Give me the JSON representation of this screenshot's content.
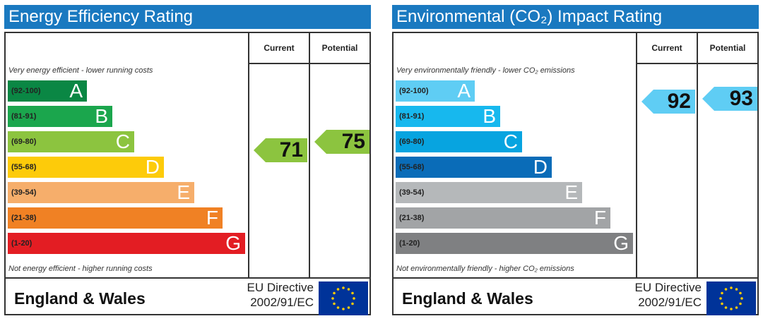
{
  "energy": {
    "title": "Energy Efficiency Rating",
    "col_current": "Current",
    "col_potential": "Potential",
    "top_note": "Very energy efficient - lower running costs",
    "bottom_note": "Not energy efficient - higher running costs",
    "bands": [
      {
        "range": "(92-100)",
        "letter": "A",
        "color": "#0a8744"
      },
      {
        "range": "(81-91)",
        "letter": "B",
        "color": "#1ba64d"
      },
      {
        "range": "(69-80)",
        "letter": "C",
        "color": "#8cc43f"
      },
      {
        "range": "(55-68)",
        "letter": "D",
        "color": "#fdcb0a"
      },
      {
        "range": "(39-54)",
        "letter": "E",
        "color": "#f6ae6b"
      },
      {
        "range": "(21-38)",
        "letter": "F",
        "color": "#f08124"
      },
      {
        "range": "(1-20)",
        "letter": "G",
        "color": "#e31d23"
      }
    ],
    "current": {
      "value": "71",
      "color": "#8cc43f"
    },
    "potential": {
      "value": "75",
      "color": "#8cc43f"
    },
    "region": "England & Wales",
    "directive_line1": "EU Directive",
    "directive_line2": "2002/91/EC"
  },
  "environment": {
    "title": "Environmental (CO₂) Impact Rating",
    "col_current": "Current",
    "col_potential": "Potential",
    "top_note": "Very environmentally friendly - lower CO₂ emissions",
    "bottom_note": "Not environmentally friendly - higher CO₂ emissions",
    "bands": [
      {
        "range": "(92-100)",
        "letter": "A",
        "color": "#5fcdf4"
      },
      {
        "range": "(81-91)",
        "letter": "B",
        "color": "#17b8ee"
      },
      {
        "range": "(69-80)",
        "letter": "C",
        "color": "#07a4e0"
      },
      {
        "range": "(55-68)",
        "letter": "D",
        "color": "#0a6cb8"
      },
      {
        "range": "(39-54)",
        "letter": "E",
        "color": "#b5b8ba"
      },
      {
        "range": "(21-38)",
        "letter": "F",
        "color": "#a2a4a6"
      },
      {
        "range": "(1-20)",
        "letter": "G",
        "color": "#7f8082"
      }
    ],
    "current": {
      "value": "92",
      "color": "#5fcdf4"
    },
    "potential": {
      "value": "93",
      "color": "#5fcdf4"
    },
    "region": "England & Wales",
    "directive_line1": "EU Directive",
    "directive_line2": "2002/91/EC"
  }
}
